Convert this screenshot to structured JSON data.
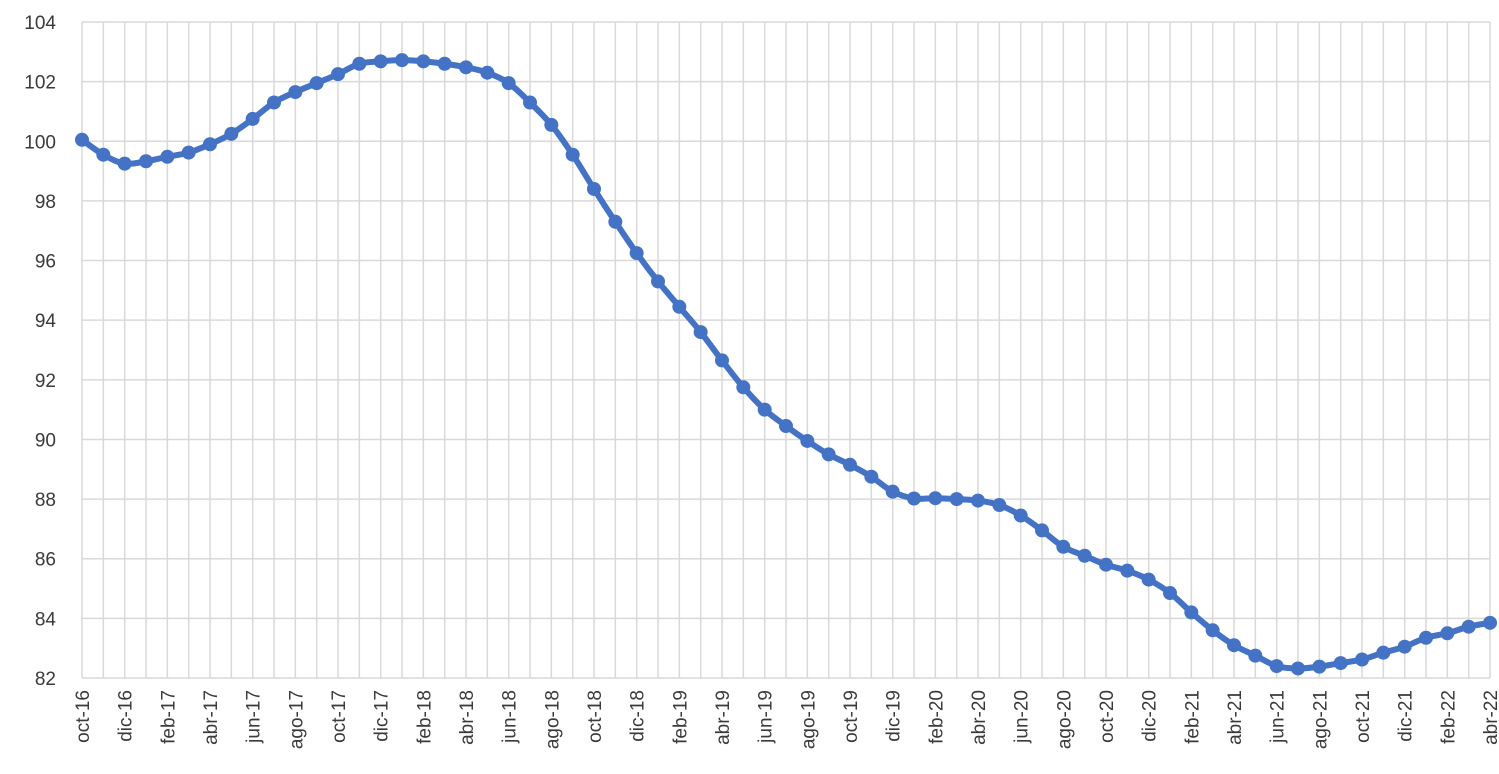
{
  "chart_data": {
    "type": "line",
    "title": "",
    "xlabel": "",
    "ylabel": "",
    "ylim": [
      82,
      104
    ],
    "y_ticks": [
      82,
      84,
      86,
      88,
      90,
      92,
      94,
      96,
      98,
      100,
      102,
      104
    ],
    "grid": true,
    "legend": "none",
    "x_tick_labels": [
      "oct-16",
      "dic-16",
      "feb-17",
      "abr-17",
      "jun-17",
      "ago-17",
      "oct-17",
      "dic-17",
      "feb-18",
      "abr-18",
      "jun-18",
      "ago-18",
      "oct-18",
      "dic-18",
      "feb-19",
      "abr-19",
      "jun-19",
      "ago-19",
      "oct-19",
      "dic-19",
      "feb-20",
      "abr-20",
      "jun-20",
      "ago-20",
      "oct-20",
      "dic-20",
      "feb-21",
      "abr-21",
      "jun-21",
      "ago-21",
      "oct-21",
      "dic-21",
      "feb-22",
      "abr-22"
    ],
    "x": [
      "oct-16",
      "nov-16",
      "dic-16",
      "ene-17",
      "feb-17",
      "mar-17",
      "abr-17",
      "may-17",
      "jun-17",
      "jul-17",
      "ago-17",
      "sep-17",
      "oct-17",
      "nov-17",
      "dic-17",
      "ene-18",
      "feb-18",
      "mar-18",
      "abr-18",
      "may-18",
      "jun-18",
      "jul-18",
      "ago-18",
      "sep-18",
      "oct-18",
      "nov-18",
      "dic-18",
      "ene-19",
      "feb-19",
      "mar-19",
      "abr-19",
      "may-19",
      "jun-19",
      "jul-19",
      "ago-19",
      "sep-19",
      "oct-19",
      "nov-19",
      "dic-19",
      "ene-20",
      "feb-20",
      "mar-20",
      "abr-20",
      "may-20",
      "jun-20",
      "jul-20",
      "ago-20",
      "sep-20",
      "oct-20",
      "nov-20",
      "dic-20",
      "ene-21",
      "feb-21",
      "mar-21",
      "abr-21",
      "may-21",
      "jun-21",
      "jul-21",
      "ago-21",
      "sep-21",
      "oct-21",
      "nov-21",
      "dic-21",
      "ene-22",
      "feb-22",
      "mar-22",
      "abr-22"
    ],
    "series": [
      {
        "color": "#4472c4",
        "values": [
          100.05,
          99.55,
          99.25,
          99.33,
          99.48,
          99.62,
          99.9,
          100.25,
          100.75,
          101.3,
          101.65,
          101.95,
          102.25,
          102.6,
          102.68,
          102.72,
          102.68,
          102.6,
          102.48,
          102.3,
          101.95,
          101.3,
          100.55,
          99.55,
          98.4,
          97.3,
          96.25,
          95.3,
          94.45,
          93.6,
          92.65,
          91.75,
          91.0,
          90.45,
          89.95,
          89.5,
          89.15,
          88.75,
          88.25,
          88.02,
          88.03,
          88.0,
          87.95,
          87.8,
          87.45,
          86.95,
          86.4,
          86.1,
          85.8,
          85.6,
          85.3,
          84.85,
          84.2,
          83.6,
          83.1,
          82.75,
          82.4,
          82.32,
          82.38,
          82.5,
          82.62,
          82.85,
          83.05,
          83.35,
          83.5,
          83.72,
          83.85
        ]
      }
    ]
  }
}
